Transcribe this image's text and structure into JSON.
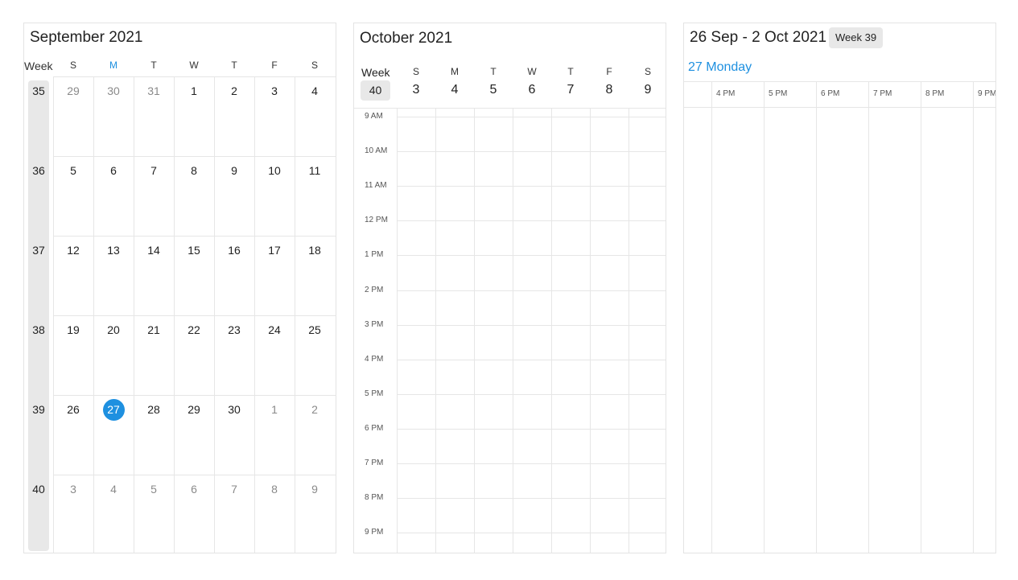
{
  "month_view": {
    "title": "September 2021",
    "week_header": "Week",
    "day_headers": [
      "S",
      "M",
      "T",
      "W",
      "T",
      "F",
      "S"
    ],
    "today_column_index": 1,
    "today_color": "#1e90e0",
    "weeks": [
      {
        "week": "35",
        "days": [
          {
            "d": "29",
            "o": true
          },
          {
            "d": "30",
            "o": true
          },
          {
            "d": "31",
            "o": true
          },
          {
            "d": "1"
          },
          {
            "d": "2"
          },
          {
            "d": "3"
          },
          {
            "d": "4"
          }
        ]
      },
      {
        "week": "36",
        "days": [
          {
            "d": "5"
          },
          {
            "d": "6"
          },
          {
            "d": "7"
          },
          {
            "d": "8"
          },
          {
            "d": "9"
          },
          {
            "d": "10"
          },
          {
            "d": "11"
          }
        ]
      },
      {
        "week": "37",
        "days": [
          {
            "d": "12"
          },
          {
            "d": "13"
          },
          {
            "d": "14"
          },
          {
            "d": "15"
          },
          {
            "d": "16"
          },
          {
            "d": "17"
          },
          {
            "d": "18"
          }
        ]
      },
      {
        "week": "38",
        "days": [
          {
            "d": "19"
          },
          {
            "d": "20"
          },
          {
            "d": "21"
          },
          {
            "d": "22"
          },
          {
            "d": "23"
          },
          {
            "d": "24"
          },
          {
            "d": "25"
          }
        ]
      },
      {
        "week": "39",
        "days": [
          {
            "d": "26"
          },
          {
            "d": "27",
            "today": true
          },
          {
            "d": "28"
          },
          {
            "d": "29"
          },
          {
            "d": "30"
          },
          {
            "d": "1",
            "o": true
          },
          {
            "d": "2",
            "o": true
          }
        ]
      },
      {
        "week": "40",
        "days": [
          {
            "d": "3",
            "o": true
          },
          {
            "d": "4",
            "o": true
          },
          {
            "d": "5",
            "o": true
          },
          {
            "d": "6",
            "o": true
          },
          {
            "d": "7",
            "o": true
          },
          {
            "d": "8",
            "o": true
          },
          {
            "d": "9",
            "o": true
          }
        ]
      }
    ]
  },
  "week_view": {
    "title": "October 2021",
    "week_label": "Week",
    "week_number": "40",
    "days": [
      {
        "name": "S",
        "num": "3"
      },
      {
        "name": "M",
        "num": "4"
      },
      {
        "name": "T",
        "num": "5"
      },
      {
        "name": "W",
        "num": "6"
      },
      {
        "name": "T",
        "num": "7"
      },
      {
        "name": "F",
        "num": "8"
      },
      {
        "name": "S",
        "num": "9"
      }
    ],
    "time_labels": [
      "9 AM",
      "10 AM",
      "11 AM",
      "12 PM",
      "1 PM",
      "2 PM",
      "3 PM",
      "4 PM",
      "5 PM",
      "6 PM",
      "7 PM",
      "8 PM",
      "9 PM"
    ]
  },
  "timeline_view": {
    "title": "26 Sep - 2 Oct 2021",
    "week_badge": "Week 39",
    "day_label": "27 Monday",
    "time_labels": [
      "4 PM",
      "5 PM",
      "6 PM",
      "7 PM",
      "8 PM",
      "9 PM"
    ]
  }
}
